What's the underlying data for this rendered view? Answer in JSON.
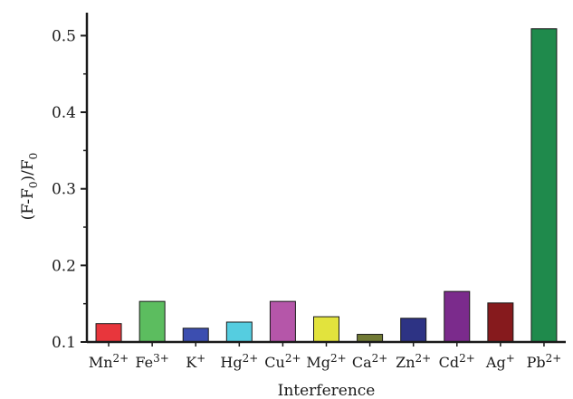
{
  "chart_data": {
    "type": "bar",
    "xlabel": "Interference",
    "ylabel": {
      "parts": [
        {
          "t": "(F-F"
        },
        {
          "t": "0",
          "sub": true
        },
        {
          "t": ")/F"
        },
        {
          "t": "0",
          "sub": true
        }
      ]
    },
    "ylim": [
      0.1,
      0.53
    ],
    "yticks": [
      "0.1",
      "0.2",
      "0.3",
      "0.4",
      "0.5"
    ],
    "grid": false,
    "categories": [
      {
        "base": "Mn",
        "sup": "2+"
      },
      {
        "base": "Fe",
        "sup": "3+"
      },
      {
        "base": "K",
        "sup": "+"
      },
      {
        "base": "Hg",
        "sup": "2+"
      },
      {
        "base": "Cu",
        "sup": "2+"
      },
      {
        "base": "Mg",
        "sup": "2+"
      },
      {
        "base": "Ca",
        "sup": "2+"
      },
      {
        "base": "Zn",
        "sup": "2+"
      },
      {
        "base": "Cd",
        "sup": "2+"
      },
      {
        "base": "Ag",
        "sup": "+"
      },
      {
        "base": "Pb",
        "sup": "2+"
      }
    ],
    "values": [
      0.124,
      0.153,
      0.118,
      0.126,
      0.153,
      0.133,
      0.11,
      0.131,
      0.166,
      0.151,
      0.509
    ],
    "colors": [
      "#e8363c",
      "#5cbd5f",
      "#3c4eb0",
      "#55cde0",
      "#b556a9",
      "#e2e33d",
      "#717a35",
      "#2d3384",
      "#7b2b8c",
      "#861a1d",
      "#1f8a4c"
    ]
  }
}
